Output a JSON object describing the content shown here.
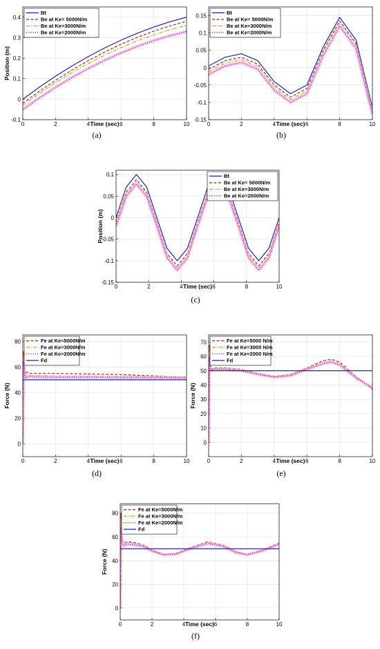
{
  "colors": {
    "bt": "#1f1fb4",
    "k5000": "#b22222",
    "k3000": "#d4a017",
    "k2000": "#b01ec8",
    "band": "#f7b8e4"
  },
  "chart_data": [
    {
      "id": "a",
      "caption": "(a)",
      "type": "line",
      "xlabel": "Time (sec)",
      "ylabel": "Position (m)",
      "xlim": [
        0,
        10
      ],
      "ylim": [
        -0.1,
        0.45
      ],
      "xticks": [
        "0",
        "2",
        "4",
        "6",
        "8",
        "10"
      ],
      "yticks": [
        "-0.1",
        "0",
        "0.1",
        "0.2",
        "0.3",
        "0.4"
      ],
      "grid": true,
      "legend_placement": "top-left",
      "x": [
        0,
        1,
        2,
        3,
        4,
        5,
        6,
        7,
        8,
        9,
        10
      ],
      "series": [
        {
          "name": "Bt",
          "style": "solid",
          "color": "bt",
          "values": [
            0.0,
            0.058,
            0.112,
            0.162,
            0.208,
            0.25,
            0.288,
            0.322,
            0.352,
            0.378,
            0.4
          ]
        },
        {
          "name": "Be at Ke= 5000N/m",
          "style": "dashed",
          "color": "k5000",
          "values": [
            -0.02,
            0.038,
            0.092,
            0.142,
            0.188,
            0.23,
            0.268,
            0.302,
            0.332,
            0.358,
            0.38
          ]
        },
        {
          "name": "Be at Ke=3000N/m",
          "style": "dashdot",
          "color": "k3000",
          "values": [
            -0.03,
            0.027,
            0.08,
            0.129,
            0.174,
            0.215,
            0.252,
            0.285,
            0.314,
            0.339,
            0.36
          ]
        },
        {
          "name": "Be at Ke=2000N/m",
          "style": "dotted",
          "color": "k2000",
          "values": [
            -0.05,
            0.006,
            0.058,
            0.106,
            0.15,
            0.19,
            0.226,
            0.258,
            0.286,
            0.31,
            0.33
          ]
        }
      ]
    },
    {
      "id": "b",
      "caption": "(b)",
      "type": "line",
      "xlabel": "Time (sec)",
      "ylabel": "",
      "xlim": [
        0,
        10
      ],
      "ylim": [
        -0.15,
        0.175
      ],
      "xticks": [
        "0",
        "2",
        "4",
        "6",
        "8",
        "10"
      ],
      "yticks": [
        "-0.15",
        "-0.1",
        "-0.05",
        "0",
        "0.05",
        "0.1",
        "0.15"
      ],
      "grid": true,
      "legend_placement": "top-left",
      "x": [
        0,
        1,
        2,
        3,
        4,
        5,
        6,
        7,
        8,
        9,
        10
      ],
      "series": [
        {
          "name": "Bt",
          "style": "solid",
          "color": "bt",
          "values": [
            0.005,
            0.03,
            0.04,
            0.02,
            -0.04,
            -0.075,
            -0.05,
            0.06,
            0.145,
            0.08,
            -0.115
          ]
        },
        {
          "name": "Be at Ke= 5000N/m",
          "style": "dashed",
          "color": "k5000",
          "values": [
            -0.005,
            0.02,
            0.03,
            0.01,
            -0.05,
            -0.085,
            -0.06,
            0.05,
            0.135,
            0.07,
            -0.125
          ]
        },
        {
          "name": "Be at Ke=3000N/m",
          "style": "dashdot",
          "color": "k3000",
          "values": [
            -0.012,
            0.013,
            0.023,
            0.003,
            -0.057,
            -0.092,
            -0.067,
            0.043,
            0.128,
            0.063,
            -0.13
          ]
        },
        {
          "name": "Be at Ke=2000N/m",
          "style": "dotted",
          "color": "k2000",
          "values": [
            -0.02,
            0.005,
            0.015,
            -0.005,
            -0.065,
            -0.1,
            -0.075,
            0.035,
            0.12,
            0.055,
            -0.135
          ]
        }
      ]
    },
    {
      "id": "c",
      "caption": "(c)",
      "type": "line",
      "xlabel": "Time (sec)",
      "ylabel": "Position (m)",
      "xlim": [
        0,
        10
      ],
      "ylim": [
        -0.15,
        0.11
      ],
      "xticks": [
        "0",
        "2",
        "4",
        "6",
        "8",
        "10"
      ],
      "yticks": [
        "-0.15",
        "-0.1",
        "-0.05",
        "0",
        "0.05",
        "0.1"
      ],
      "grid": true,
      "legend_placement": "top-right",
      "x": [
        0,
        0.625,
        1.25,
        1.875,
        2.5,
        3.125,
        3.75,
        4.375,
        5,
        5.625,
        6.25,
        6.875,
        7.5,
        8.125,
        8.75,
        9.375,
        10
      ],
      "series": [
        {
          "name": "Bt",
          "style": "solid",
          "color": "bt",
          "values": [
            0.0,
            0.071,
            0.1,
            0.071,
            0.0,
            -0.071,
            -0.1,
            -0.071,
            0.0,
            0.071,
            0.1,
            0.071,
            0.0,
            -0.071,
            -0.1,
            -0.071,
            0.0
          ]
        },
        {
          "name": "Be at Ke= 5000N/m",
          "style": "dashed",
          "color": "k5000",
          "values": [
            -0.01,
            0.059,
            0.088,
            0.059,
            -0.01,
            -0.083,
            -0.112,
            -0.083,
            -0.01,
            0.059,
            0.088,
            0.059,
            -0.01,
            -0.083,
            -0.112,
            -0.083,
            -0.01
          ]
        },
        {
          "name": "Be at Ke=3000N/m",
          "style": "dashdot",
          "color": "k3000",
          "values": [
            -0.015,
            0.054,
            0.083,
            0.054,
            -0.015,
            -0.088,
            -0.117,
            -0.088,
            -0.015,
            0.054,
            0.083,
            0.054,
            -0.015,
            -0.088,
            -0.117,
            -0.088,
            -0.015
          ]
        },
        {
          "name": "Be at Ke=2000N/m",
          "style": "dotted",
          "color": "k2000",
          "values": [
            -0.02,
            0.049,
            0.078,
            0.049,
            -0.02,
            -0.093,
            -0.122,
            -0.093,
            -0.02,
            0.049,
            0.078,
            0.049,
            -0.02,
            -0.093,
            -0.122,
            -0.093,
            -0.02
          ]
        }
      ]
    },
    {
      "id": "d",
      "caption": "(d)",
      "type": "line",
      "xlabel": "Time (sec)",
      "ylabel": "Force (N)",
      "xlim": [
        0,
        10
      ],
      "ylim": [
        -10,
        85
      ],
      "xticks": [
        "0",
        "2",
        "4",
        "6",
        "8",
        "10"
      ],
      "yticks": [
        "0",
        "20",
        "40",
        "60",
        "80"
      ],
      "grid": true,
      "legend_placement": "top-left",
      "x": [
        0,
        0.05,
        0.1,
        0.15,
        0.25,
        0.4,
        1,
        2,
        4,
        6,
        8,
        10
      ],
      "series": [
        {
          "name": "Fe at Ke=5000N/m",
          "style": "dashed",
          "color": "k5000",
          "values": [
            0,
            72,
            58,
            54,
            56,
            55,
            55,
            55,
            54.5,
            54,
            53,
            52
          ]
        },
        {
          "name": "Fe at Ke=3000N/m",
          "style": "dashdot",
          "color": "k3000",
          "values": [
            0,
            68,
            56,
            52.5,
            54,
            53.5,
            53.5,
            53,
            52.8,
            52.5,
            52.3,
            52
          ]
        },
        {
          "name": "Fe at Ke=2000N/m",
          "style": "dotted",
          "color": "k2000",
          "values": [
            0,
            64,
            54,
            51,
            52.5,
            52.5,
            52.2,
            52,
            52,
            51.8,
            51.7,
            51.5
          ]
        },
        {
          "name": "Fd",
          "style": "solid",
          "color": "bt",
          "values": [
            50,
            50,
            50,
            50,
            50,
            50,
            50,
            50,
            50,
            50,
            50,
            50
          ]
        }
      ]
    },
    {
      "id": "e",
      "caption": "(e)",
      "type": "line",
      "xlabel": "Time (sec)",
      "ylabel": "Force (N)",
      "xlim": [
        0,
        10
      ],
      "ylim": [
        -10,
        75
      ],
      "xticks": [
        "0",
        "2",
        "4",
        "6",
        "8",
        "10"
      ],
      "yticks": [
        "0",
        "10",
        "20",
        "30",
        "40",
        "50",
        "60",
        "70"
      ],
      "grid": true,
      "legend_placement": "top-left",
      "x": [
        0,
        0.05,
        0.1,
        0.15,
        0.3,
        1,
        2,
        3,
        4,
        5,
        6,
        7,
        7.5,
        8,
        9,
        10
      ],
      "series": [
        {
          "name": "Fe at Ke=5000 N/m",
          "style": "dashed",
          "color": "k5000",
          "values": [
            0,
            68,
            56,
            51,
            52,
            52,
            51,
            48,
            46,
            47.5,
            52,
            57,
            58,
            56,
            46,
            37
          ]
        },
        {
          "name": "Fe at Ke=3000 N/m",
          "style": "dashdot",
          "color": "k3000",
          "values": [
            0,
            64,
            54,
            50.5,
            51.5,
            51.5,
            50.5,
            47.8,
            45.8,
            47,
            51.5,
            56,
            57,
            55,
            45.5,
            37.5
          ]
        },
        {
          "name": "Fe at Ke=2000 N/m",
          "style": "dotted",
          "color": "k2000",
          "values": [
            0,
            60,
            52,
            50,
            51,
            51,
            50,
            47.5,
            45.5,
            46.5,
            51,
            55,
            56,
            54,
            45,
            38
          ]
        },
        {
          "name": "Fd",
          "style": "solid",
          "color": "bt",
          "values": [
            50,
            50,
            50,
            50,
            50,
            50,
            50,
            50,
            50,
            50,
            50,
            50,
            50,
            50,
            50,
            50
          ]
        }
      ]
    },
    {
      "id": "f",
      "caption": "(f)",
      "type": "line",
      "xlabel": "Time (sec)",
      "ylabel": "Force (N)",
      "xlim": [
        0,
        10
      ],
      "ylim": [
        -10,
        88
      ],
      "xticks": [
        "0",
        "2",
        "4",
        "6",
        "8",
        "10"
      ],
      "yticks": [
        "0",
        "20",
        "40",
        "60",
        "80"
      ],
      "grid": true,
      "legend_placement": "top-left",
      "x": [
        0,
        0.05,
        0.1,
        0.2,
        0.5,
        1,
        1.5,
        2,
        2.75,
        3.5,
        4.5,
        5.5,
        6.5,
        7.25,
        8,
        9,
        10
      ],
      "series": [
        {
          "name": "Fe at Ke=5000N/m",
          "style": "dashed",
          "color": "k5000",
          "values": [
            0,
            80,
            60,
            55,
            56,
            55,
            53,
            49,
            45,
            46,
            51.5,
            56,
            53,
            48,
            45,
            49,
            55
          ]
        },
        {
          "name": "Fe at Ke=3000N/m",
          "style": "dashdot",
          "color": "k3000",
          "values": [
            0,
            74,
            57,
            53.5,
            55,
            54,
            52.5,
            48.5,
            45,
            45.8,
            51,
            55.3,
            52.5,
            47.5,
            45,
            48.8,
            54.5
          ]
        },
        {
          "name": "Fe at Ke=2000N/m",
          "style": "dotted",
          "color": "k2000",
          "values": [
            0,
            68,
            55,
            52.5,
            54,
            53,
            52,
            48,
            45,
            45.5,
            50.5,
            54.5,
            52,
            47,
            45,
            48.5,
            54
          ]
        },
        {
          "name": "Fd",
          "style": "solid",
          "color": "bt",
          "values": [
            50,
            50,
            50,
            50,
            50,
            50,
            50,
            50,
            50,
            50,
            50,
            50,
            50,
            50,
            50,
            50,
            50
          ]
        }
      ]
    }
  ]
}
